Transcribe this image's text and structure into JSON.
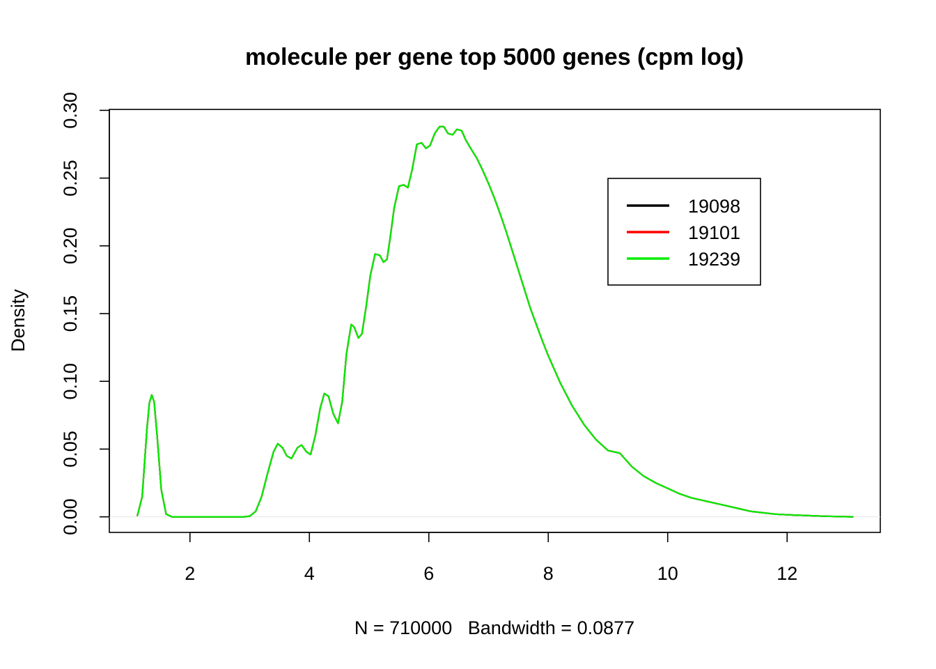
{
  "chart_data": {
    "type": "line",
    "title": "molecule per gene top 5000 genes (cpm log)",
    "xlabel": "N = 710000   Bandwidth = 0.0877",
    "ylabel": "Density",
    "xlim": [
      0.65,
      13.56
    ],
    "ylim": [
      -0.0115,
      0.3007
    ],
    "xticks": [
      2,
      4,
      6,
      8,
      10,
      12
    ],
    "yticks": [
      0.0,
      0.05,
      0.1,
      0.15,
      0.2,
      0.25,
      0.3
    ],
    "ytick_labels": [
      "0.00",
      "0.05",
      "0.10",
      "0.15",
      "0.20",
      "0.25",
      "0.30"
    ],
    "grid": false,
    "baseline": 0,
    "legend_position": "top-right",
    "series": [
      {
        "name": "19098",
        "color": "#000000",
        "x": [
          1.12,
          1.2,
          1.28,
          1.32,
          1.36,
          1.4,
          1.45,
          1.52,
          1.6,
          1.7,
          1.9,
          2.2,
          2.6,
          2.9,
          3.0,
          3.1,
          3.2,
          3.3,
          3.4,
          3.47,
          3.55,
          3.62,
          3.7,
          3.8,
          3.87,
          3.95,
          4.02,
          4.1,
          4.18,
          4.25,
          4.32,
          4.4,
          4.48,
          4.55,
          4.62,
          4.7,
          4.75,
          4.82,
          4.88,
          4.95,
          5.02,
          5.1,
          5.18,
          5.24,
          5.3,
          5.35,
          5.42,
          5.5,
          5.58,
          5.65,
          5.72,
          5.8,
          5.88,
          5.95,
          6.02,
          6.1,
          6.18,
          6.25,
          6.32,
          6.4,
          6.47,
          6.55,
          6.62,
          6.7,
          6.8,
          6.9,
          7.0,
          7.1,
          7.2,
          7.3,
          7.4,
          7.5,
          7.6,
          7.7,
          7.8,
          7.9,
          8.0,
          8.2,
          8.4,
          8.6,
          8.8,
          9.0,
          9.2,
          9.4,
          9.6,
          9.8,
          10.0,
          10.2,
          10.4,
          10.6,
          10.8,
          11.0,
          11.2,
          11.4,
          11.6,
          11.8,
          12.0,
          12.3,
          12.6,
          12.9,
          13.1
        ],
        "y": [
          0.001,
          0.015,
          0.065,
          0.084,
          0.09,
          0.085,
          0.06,
          0.02,
          0.002,
          0.0,
          0.0,
          0.0,
          0.0,
          0.0,
          0.0005,
          0.004,
          0.015,
          0.032,
          0.048,
          0.054,
          0.051,
          0.045,
          0.043,
          0.051,
          0.053,
          0.048,
          0.046,
          0.06,
          0.08,
          0.091,
          0.089,
          0.076,
          0.069,
          0.085,
          0.12,
          0.142,
          0.14,
          0.132,
          0.135,
          0.155,
          0.178,
          0.194,
          0.193,
          0.188,
          0.19,
          0.205,
          0.228,
          0.244,
          0.245,
          0.243,
          0.256,
          0.275,
          0.276,
          0.272,
          0.274,
          0.283,
          0.288,
          0.288,
          0.283,
          0.282,
          0.286,
          0.285,
          0.278,
          0.272,
          0.265,
          0.256,
          0.246,
          0.235,
          0.223,
          0.21,
          0.196,
          0.182,
          0.168,
          0.154,
          0.142,
          0.13,
          0.119,
          0.099,
          0.082,
          0.068,
          0.057,
          0.049,
          0.047,
          0.037,
          0.03,
          0.025,
          0.021,
          0.017,
          0.014,
          0.012,
          0.01,
          0.008,
          0.006,
          0.004,
          0.003,
          0.002,
          0.0015,
          0.001,
          0.0005,
          0.0002,
          0.0
        ]
      },
      {
        "name": "19101",
        "color": "#ff0000",
        "x": [
          1.12,
          1.2,
          1.28,
          1.32,
          1.36,
          1.4,
          1.45,
          1.52,
          1.6,
          1.7,
          1.9,
          2.2,
          2.6,
          2.9,
          3.0,
          3.1,
          3.2,
          3.3,
          3.4,
          3.47,
          3.55,
          3.62,
          3.7,
          3.8,
          3.87,
          3.95,
          4.02,
          4.1,
          4.18,
          4.25,
          4.32,
          4.4,
          4.48,
          4.55,
          4.62,
          4.7,
          4.75,
          4.82,
          4.88,
          4.95,
          5.02,
          5.1,
          5.18,
          5.24,
          5.3,
          5.35,
          5.42,
          5.5,
          5.58,
          5.65,
          5.72,
          5.8,
          5.88,
          5.95,
          6.02,
          6.1,
          6.18,
          6.25,
          6.32,
          6.4,
          6.47,
          6.55,
          6.62,
          6.7,
          6.8,
          6.9,
          7.0,
          7.1,
          7.2,
          7.3,
          7.4,
          7.5,
          7.6,
          7.7,
          7.8,
          7.9,
          8.0,
          8.2,
          8.4,
          8.6,
          8.8,
          9.0,
          9.2,
          9.4,
          9.6,
          9.8,
          10.0,
          10.2,
          10.4,
          10.6,
          10.8,
          11.0,
          11.2,
          11.4,
          11.6,
          11.8,
          12.0,
          12.3,
          12.6,
          12.9,
          13.1
        ],
        "y": [
          0.001,
          0.015,
          0.065,
          0.084,
          0.09,
          0.085,
          0.06,
          0.02,
          0.002,
          0.0,
          0.0,
          0.0,
          0.0,
          0.0,
          0.0005,
          0.004,
          0.015,
          0.032,
          0.048,
          0.054,
          0.051,
          0.045,
          0.043,
          0.051,
          0.053,
          0.048,
          0.046,
          0.06,
          0.08,
          0.091,
          0.089,
          0.076,
          0.069,
          0.085,
          0.12,
          0.142,
          0.14,
          0.132,
          0.135,
          0.155,
          0.178,
          0.194,
          0.193,
          0.188,
          0.19,
          0.205,
          0.228,
          0.244,
          0.245,
          0.243,
          0.256,
          0.275,
          0.276,
          0.272,
          0.274,
          0.283,
          0.288,
          0.288,
          0.283,
          0.282,
          0.286,
          0.285,
          0.278,
          0.272,
          0.265,
          0.256,
          0.246,
          0.235,
          0.223,
          0.21,
          0.196,
          0.182,
          0.168,
          0.154,
          0.142,
          0.13,
          0.119,
          0.099,
          0.082,
          0.068,
          0.057,
          0.049,
          0.047,
          0.037,
          0.03,
          0.025,
          0.021,
          0.017,
          0.014,
          0.012,
          0.01,
          0.008,
          0.006,
          0.004,
          0.003,
          0.002,
          0.0015,
          0.001,
          0.0005,
          0.0002,
          0.0
        ]
      },
      {
        "name": "19239",
        "color": "#00ee00",
        "x": [
          1.12,
          1.2,
          1.28,
          1.32,
          1.36,
          1.4,
          1.45,
          1.52,
          1.6,
          1.7,
          1.9,
          2.2,
          2.6,
          2.9,
          3.0,
          3.1,
          3.2,
          3.3,
          3.4,
          3.47,
          3.55,
          3.62,
          3.7,
          3.8,
          3.87,
          3.95,
          4.02,
          4.1,
          4.18,
          4.25,
          4.32,
          4.4,
          4.48,
          4.55,
          4.62,
          4.7,
          4.75,
          4.82,
          4.88,
          4.95,
          5.02,
          5.1,
          5.18,
          5.24,
          5.3,
          5.35,
          5.42,
          5.5,
          5.58,
          5.65,
          5.72,
          5.8,
          5.88,
          5.95,
          6.02,
          6.1,
          6.18,
          6.25,
          6.32,
          6.4,
          6.47,
          6.55,
          6.62,
          6.7,
          6.8,
          6.9,
          7.0,
          7.1,
          7.2,
          7.3,
          7.4,
          7.5,
          7.6,
          7.7,
          7.8,
          7.9,
          8.0,
          8.2,
          8.4,
          8.6,
          8.8,
          9.0,
          9.2,
          9.4,
          9.6,
          9.8,
          10.0,
          10.2,
          10.4,
          10.6,
          10.8,
          11.0,
          11.2,
          11.4,
          11.6,
          11.8,
          12.0,
          12.3,
          12.6,
          12.9,
          13.1
        ],
        "y": [
          0.001,
          0.015,
          0.065,
          0.084,
          0.09,
          0.085,
          0.06,
          0.02,
          0.002,
          0.0,
          0.0,
          0.0,
          0.0,
          0.0,
          0.0005,
          0.004,
          0.015,
          0.032,
          0.048,
          0.054,
          0.051,
          0.045,
          0.043,
          0.051,
          0.053,
          0.048,
          0.046,
          0.06,
          0.08,
          0.091,
          0.089,
          0.076,
          0.069,
          0.085,
          0.12,
          0.142,
          0.14,
          0.132,
          0.135,
          0.155,
          0.178,
          0.194,
          0.193,
          0.188,
          0.19,
          0.205,
          0.228,
          0.244,
          0.245,
          0.243,
          0.256,
          0.275,
          0.276,
          0.272,
          0.274,
          0.283,
          0.288,
          0.288,
          0.283,
          0.282,
          0.286,
          0.285,
          0.278,
          0.272,
          0.265,
          0.256,
          0.246,
          0.235,
          0.223,
          0.21,
          0.196,
          0.182,
          0.168,
          0.154,
          0.142,
          0.13,
          0.119,
          0.099,
          0.082,
          0.068,
          0.057,
          0.049,
          0.047,
          0.037,
          0.03,
          0.025,
          0.021,
          0.017,
          0.014,
          0.012,
          0.01,
          0.008,
          0.006,
          0.004,
          0.003,
          0.002,
          0.0015,
          0.001,
          0.0005,
          0.0002,
          0.0
        ]
      }
    ]
  }
}
